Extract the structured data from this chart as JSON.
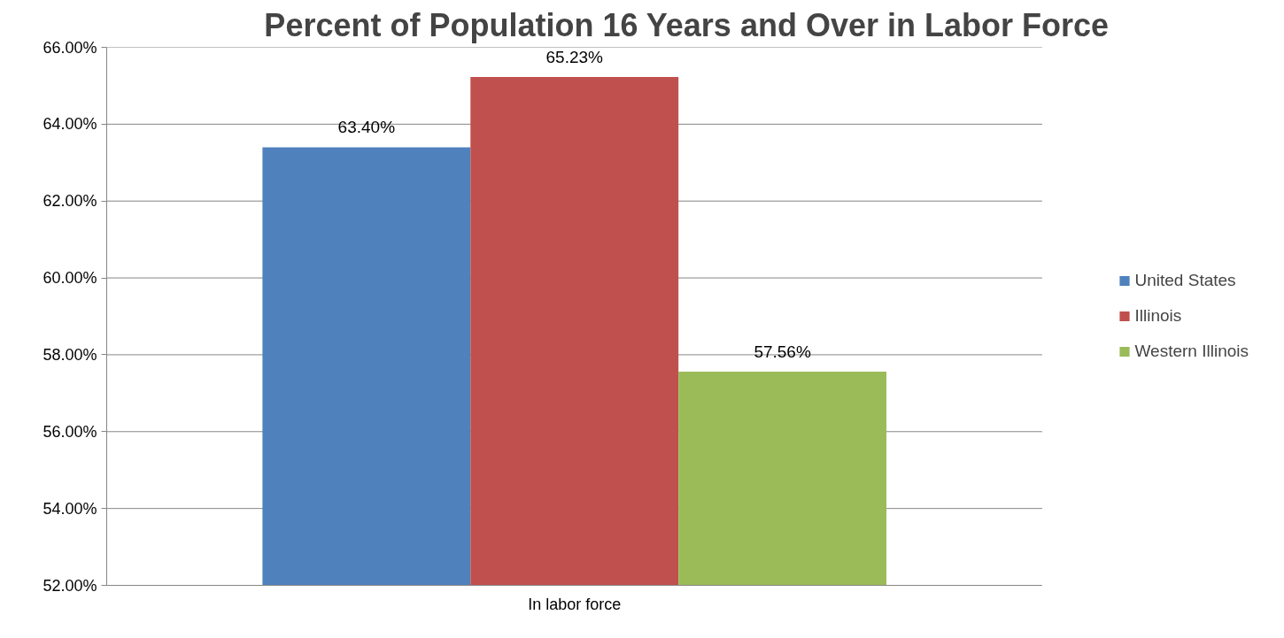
{
  "chart_data": {
    "type": "bar",
    "title": "Percent of Population 16 Years and Over in Labor Force",
    "categories": [
      "In labor force"
    ],
    "series": [
      {
        "name": "United States",
        "color": "#4f81bd",
        "values": [
          63.4
        ],
        "value_labels": [
          "63.40%"
        ]
      },
      {
        "name": "Illinois",
        "color": "#c0504d",
        "values": [
          65.23
        ],
        "value_labels": [
          "65.23%"
        ]
      },
      {
        "name": "Western Illinois",
        "color": "#9bbb59",
        "values": [
          57.56
        ],
        "value_labels": [
          "57.56%"
        ]
      }
    ],
    "ylim": [
      52,
      66
    ],
    "yticks": [
      {
        "value": 52,
        "label": "52.00%"
      },
      {
        "value": 54,
        "label": "54.00%"
      },
      {
        "value": 56,
        "label": "56.00%"
      },
      {
        "value": 58,
        "label": "58.00%"
      },
      {
        "value": 60,
        "label": "60.00%"
      },
      {
        "value": 62,
        "label": "62.00%"
      },
      {
        "value": 64,
        "label": "64.00%"
      },
      {
        "value": 66,
        "label": "66.00%"
      }
    ],
    "grid": "y",
    "legend": "right"
  }
}
